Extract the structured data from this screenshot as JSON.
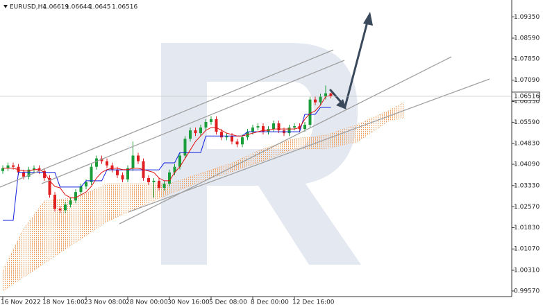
{
  "chart_data": {
    "type": "candlestick",
    "title": "EURUSD,H4",
    "categories": [
      "16 Nov 2022",
      null,
      null,
      null,
      null,
      null,
      null,
      null,
      "18 Nov 16:00",
      null,
      null,
      null,
      null,
      null,
      null,
      null,
      "23 Nov 08:00",
      null,
      null,
      null,
      null,
      null,
      null,
      null,
      "28 Nov 00:00",
      null,
      null,
      null,
      null,
      null,
      null,
      null,
      "30 Nov 16:00",
      null,
      null,
      null,
      null,
      null,
      null,
      null,
      "5 Dec 08:00",
      null,
      null,
      null,
      null,
      null,
      null,
      null,
      "8 Dec 00:00",
      null,
      null,
      null,
      null,
      null,
      null,
      null,
      "12 Dec 16:00",
      null,
      null,
      null,
      null,
      null,
      null,
      null,
      null,
      null,
      null,
      null,
      null,
      null,
      null,
      null,
      null,
      null,
      null,
      null,
      null,
      null
    ],
    "open": [
      1.0385,
      1.0395,
      1.0405,
      1.04,
      1.038,
      1.0365,
      1.039,
      1.0395,
      1.0385,
      1.036,
      1.03,
      1.025,
      1.0245,
      1.0265,
      1.028,
      1.031,
      1.033,
      1.0345,
      1.04,
      1.043,
      1.042,
      1.0405,
      1.039,
      1.037,
      1.0355,
      1.0395,
      1.044,
      1.042,
      1.036,
      1.0345,
      1.035,
      1.0325,
      1.034,
      1.038,
      1.04,
      1.044,
      1.05,
      1.053,
      1.052,
      1.054,
      1.056,
      1.057,
      1.0525,
      1.0505,
      1.051,
      1.049,
      1.048,
      1.0505,
      1.0525,
      1.054,
      1.0545,
      1.0525,
      1.0535,
      1.0555,
      1.053,
      1.052,
      1.054,
      1.0545,
      1.0535,
      1.055,
      1.064,
      1.063,
      1.065,
      1.06619,
      null,
      null,
      null,
      null,
      null,
      null,
      null,
      null,
      null,
      null,
      null,
      null,
      null,
      null
    ],
    "high": [
      1.0405,
      1.0415,
      1.0415,
      1.041,
      1.039,
      1.04,
      1.0405,
      1.0405,
      1.0395,
      1.037,
      1.031,
      1.026,
      1.0275,
      1.029,
      1.032,
      1.034,
      1.0355,
      1.041,
      1.044,
      1.044,
      1.043,
      1.0415,
      1.04,
      1.038,
      1.0405,
      1.049,
      1.045,
      1.043,
      1.037,
      1.036,
      1.036,
      1.035,
      1.039,
      1.041,
      1.045,
      1.051,
      1.054,
      1.054,
      1.055,
      1.057,
      1.058,
      1.058,
      1.0535,
      1.052,
      1.052,
      1.05,
      1.0515,
      1.0535,
      1.055,
      1.0555,
      1.0555,
      1.0545,
      1.0565,
      1.0565,
      1.054,
      1.055,
      1.0555,
      1.0555,
      1.056,
      1.065,
      1.065,
      1.066,
      1.069,
      1.06644,
      null,
      null,
      null,
      null,
      null,
      null,
      null,
      null,
      null,
      null,
      null,
      null,
      null,
      null
    ],
    "low": [
      1.0375,
      1.0385,
      1.039,
      1.037,
      1.0355,
      1.0355,
      1.038,
      1.0375,
      1.035,
      1.029,
      1.024,
      1.0235,
      1.0235,
      1.0255,
      1.027,
      1.03,
      1.032,
      1.0335,
      1.039,
      1.041,
      1.0395,
      1.038,
      1.036,
      1.0345,
      1.0345,
      1.0385,
      1.041,
      1.035,
      1.0335,
      1.029,
      1.0315,
      1.0315,
      1.033,
      1.037,
      1.039,
      1.043,
      1.049,
      1.051,
      1.051,
      1.053,
      1.055,
      1.0515,
      1.0495,
      1.0495,
      1.048,
      1.047,
      1.047,
      1.0495,
      1.0515,
      1.053,
      1.0515,
      1.0515,
      1.0525,
      1.052,
      1.051,
      1.051,
      1.053,
      1.0525,
      1.0525,
      1.054,
      1.062,
      1.062,
      1.064,
      1.0645,
      null,
      null,
      null,
      null,
      null,
      null,
      null,
      null,
      null,
      null,
      null,
      null,
      null,
      null
    ],
    "close": [
      1.0395,
      1.0405,
      1.04,
      1.038,
      1.0365,
      1.039,
      1.0395,
      1.0385,
      1.036,
      1.03,
      1.025,
      1.0245,
      1.0265,
      1.028,
      1.031,
      1.033,
      1.0345,
      1.04,
      1.043,
      1.042,
      1.0405,
      1.039,
      1.037,
      1.0355,
      1.0395,
      1.044,
      1.042,
      1.036,
      1.0345,
      1.035,
      1.0325,
      1.034,
      1.038,
      1.04,
      1.044,
      1.05,
      1.053,
      1.052,
      1.054,
      1.056,
      1.057,
      1.0525,
      1.0505,
      1.051,
      1.049,
      1.048,
      1.0505,
      1.0525,
      1.054,
      1.0545,
      1.0525,
      1.0535,
      1.0555,
      1.053,
      1.052,
      1.054,
      1.0545,
      1.0535,
      1.055,
      1.064,
      1.063,
      1.065,
      1.0662,
      1.06516,
      null,
      null,
      null,
      null,
      null,
      null,
      null,
      null,
      null,
      null,
      null,
      null,
      null,
      null
    ],
    "tenkan": [
      1.0395,
      1.0395,
      1.0395,
      1.039,
      1.0385,
      1.0385,
      1.039,
      1.039,
      1.038,
      1.035,
      1.033,
      1.0325,
      1.03,
      1.029,
      1.029,
      1.03,
      1.031,
      1.033,
      1.036,
      1.038,
      1.039,
      1.0395,
      1.0395,
      1.039,
      1.039,
      1.0395,
      1.0395,
      1.039,
      1.0385,
      1.038,
      1.036,
      1.035,
      1.035,
      1.038,
      1.04,
      1.043,
      1.046,
      1.049,
      1.051,
      1.053,
      1.054,
      1.054,
      1.053,
      1.052,
      1.0515,
      1.051,
      1.051,
      1.0515,
      1.052,
      1.0525,
      1.053,
      1.053,
      1.0535,
      1.0535,
      1.0535,
      1.0535,
      1.0535,
      1.054,
      1.057,
      1.059,
      1.06,
      1.062,
      1.065,
      1.0655,
      null,
      null,
      null,
      null,
      null,
      null,
      null,
      null,
      null,
      null,
      null,
      null,
      null,
      null
    ],
    "kijun": [
      1.0209,
      1.0209,
      1.0209,
      1.038,
      1.038,
      1.038,
      1.038,
      1.038,
      1.038,
      1.038,
      1.038,
      1.0328,
      1.0328,
      1.0328,
      1.0328,
      1.0328,
      1.035,
      1.035,
      1.035,
      1.035,
      1.0389,
      1.0389,
      1.0389,
      1.0389,
      1.0389,
      1.0389,
      1.0389,
      1.0389,
      1.0389,
      1.0389,
      1.0389,
      1.0414,
      1.0414,
      1.0414,
      1.0451,
      1.0451,
      1.0451,
      1.0451,
      1.0451,
      1.051,
      1.051,
      1.051,
      1.051,
      1.051,
      1.051,
      1.051,
      1.051,
      1.0525,
      1.0525,
      1.0525,
      1.0525,
      1.0525,
      1.0525,
      1.0525,
      1.0525,
      1.0525,
      1.0525,
      1.0525,
      1.0587,
      1.0587,
      1.0587,
      1.0612,
      1.0612,
      1.0612,
      null,
      null,
      null,
      null,
      null,
      null,
      null,
      null,
      null,
      null,
      null,
      null,
      null,
      null
    ],
    "span_a": [
      1.0031,
      1.0068,
      1.0105,
      1.0142,
      1.0179,
      1.0204,
      1.0229,
      1.0254,
      1.0278,
      1.028,
      1.0282,
      1.0284,
      1.0286,
      1.0288,
      1.029,
      1.0298,
      1.0306,
      1.0315,
      1.0323,
      1.0331,
      1.034,
      1.034,
      1.034,
      1.034,
      1.034,
      1.034,
      1.034,
      1.034,
      1.034,
      1.034,
      1.034,
      1.034,
      1.034,
      1.0346,
      1.0352,
      1.0358,
      1.0365,
      1.0371,
      1.0377,
      1.0383,
      1.0389,
      1.0396,
      1.0402,
      1.0408,
      1.0414,
      1.0422,
      1.0431,
      1.0439,
      1.0447,
      1.0456,
      1.0464,
      1.047,
      1.0476,
      1.0483,
      1.0489,
      1.0495,
      1.0501,
      1.0503,
      1.0505,
      1.0507,
      1.0509,
      1.0511,
      1.0513,
      1.0519,
      1.0525,
      1.0532,
      1.0538,
      1.0544,
      1.055,
      1.0558,
      1.0567,
      1.0575,
      1.0583,
      1.0592,
      1.06,
      1.061,
      1.0619,
      1.0629
    ],
    "span_b": [
      0.9957,
      0.9969,
      0.9982,
      0.9994,
      1.0006,
      1.0018,
      1.0031,
      1.0043,
      1.0056,
      1.0068,
      1.0081,
      1.0093,
      1.0105,
      1.0118,
      1.013,
      1.0142,
      1.0155,
      1.0167,
      1.0179,
      1.0192,
      1.0204,
      1.0212,
      1.0221,
      1.0229,
      1.0237,
      1.0245,
      1.0254,
      1.0262,
      1.027,
      1.0278,
      1.0287,
      1.0295,
      1.0303,
      1.031,
      1.0318,
      1.0325,
      1.0332,
      1.034,
      1.0347,
      1.0353,
      1.0359,
      1.0365,
      1.037,
      1.0376,
      1.0382,
      1.0389,
      1.0395,
      1.0402,
      1.0408,
      1.0415,
      1.0421,
      1.0428,
      1.0435,
      1.0443,
      1.045,
      1.0457,
      1.0464,
      1.0464,
      1.0464,
      1.0464,
      1.0464,
      1.0464,
      1.0464,
      1.0468,
      1.0472,
      1.0476,
      1.048,
      1.0484,
      1.0488,
      1.05,
      1.0513,
      1.0525,
      1.0537,
      1.055,
      1.0562,
      1.0566,
      1.0571,
      1.0575
    ],
    "up_color": "#1a9e3a",
    "down_color": "#e02020",
    "tenkan_color": "#e01010",
    "kijun_color": "#1020e0",
    "cloud_color": "#f0a060",
    "ylim": [
      0.9937,
      1.0995
    ],
    "yticks": [
      {
        "value": 1.0935,
        "label": "1.09350"
      },
      {
        "value": 1.0859,
        "label": "1.08590"
      },
      {
        "value": 1.0785,
        "label": "1.07850"
      },
      {
        "value": 1.0709,
        "label": "1.07090"
      },
      {
        "value": 1.0633,
        "label": "1.06330"
      },
      {
        "value": 1.0559,
        "label": "1.05590"
      },
      {
        "value": 1.0483,
        "label": "1.04830"
      },
      {
        "value": 1.0409,
        "label": "1.04090"
      },
      {
        "value": 1.0333,
        "label": "1.03330"
      },
      {
        "value": 1.0257,
        "label": "1.02570"
      },
      {
        "value": 1.0183,
        "label": "1.01830"
      },
      {
        "value": 1.0107,
        "label": "1.01070"
      },
      {
        "value": 1.0031,
        "label": "1.00310"
      },
      {
        "value": 0.9957,
        "label": "0.99570"
      }
    ],
    "grid": false
  }
}
